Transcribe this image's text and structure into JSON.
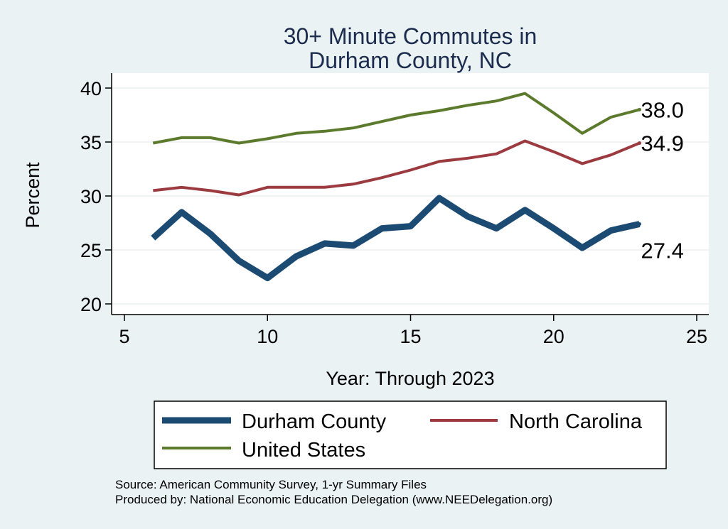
{
  "chart_data": {
    "type": "line",
    "title": [
      "30+ Minute Commutes in",
      "Durham County, NC"
    ],
    "xlabel": "Year: Through 2023",
    "ylabel": "Percent",
    "xlim": [
      5,
      25
    ],
    "ylim": [
      20,
      40
    ],
    "xticks": [
      5,
      10,
      15,
      20,
      25
    ],
    "yticks": [
      20,
      25,
      30,
      35,
      40
    ],
    "grid": true,
    "legend_position": "bottom",
    "series": [
      {
        "name": "Durham County",
        "color": "#1b4a72",
        "line_weight": "thick",
        "end_label": "27.4",
        "x": [
          6,
          7,
          8,
          9,
          10,
          11,
          12,
          13,
          14,
          15,
          16,
          17,
          18,
          19,
          20,
          21,
          22,
          23
        ],
        "y": [
          26.1,
          28.5,
          26.5,
          24.0,
          22.4,
          24.4,
          25.6,
          25.4,
          27.0,
          27.2,
          29.8,
          28.1,
          27.0,
          28.7,
          27.0,
          25.2,
          26.8,
          27.4
        ]
      },
      {
        "name": "North Carolina",
        "color": "#9b3a3f",
        "line_weight": "medium",
        "end_label": "34.9",
        "x": [
          6,
          7,
          8,
          9,
          10,
          11,
          12,
          13,
          14,
          15,
          16,
          17,
          18,
          19,
          20,
          21,
          22,
          23
        ],
        "y": [
          30.5,
          30.8,
          30.5,
          30.1,
          30.8,
          30.8,
          30.8,
          31.1,
          31.7,
          32.4,
          33.2,
          33.5,
          33.9,
          35.1,
          34.1,
          33.0,
          33.8,
          34.9
        ]
      },
      {
        "name": "United States",
        "color": "#5b7a2c",
        "line_weight": "medium",
        "end_label": "38.0",
        "x": [
          6,
          7,
          8,
          9,
          10,
          11,
          12,
          13,
          14,
          15,
          16,
          17,
          18,
          19,
          20,
          21,
          22,
          23
        ],
        "y": [
          34.9,
          35.4,
          35.4,
          34.9,
          35.3,
          35.8,
          36.0,
          36.3,
          36.9,
          37.5,
          37.9,
          38.4,
          38.8,
          39.5,
          37.7,
          35.8,
          37.3,
          38.0
        ]
      }
    ]
  },
  "footer": {
    "source": "Source: American Community Survey, 1-yr Summary Files",
    "produced_by": "Produced by: National Economic Education Delegation (www.NEEDelegation.org)"
  }
}
